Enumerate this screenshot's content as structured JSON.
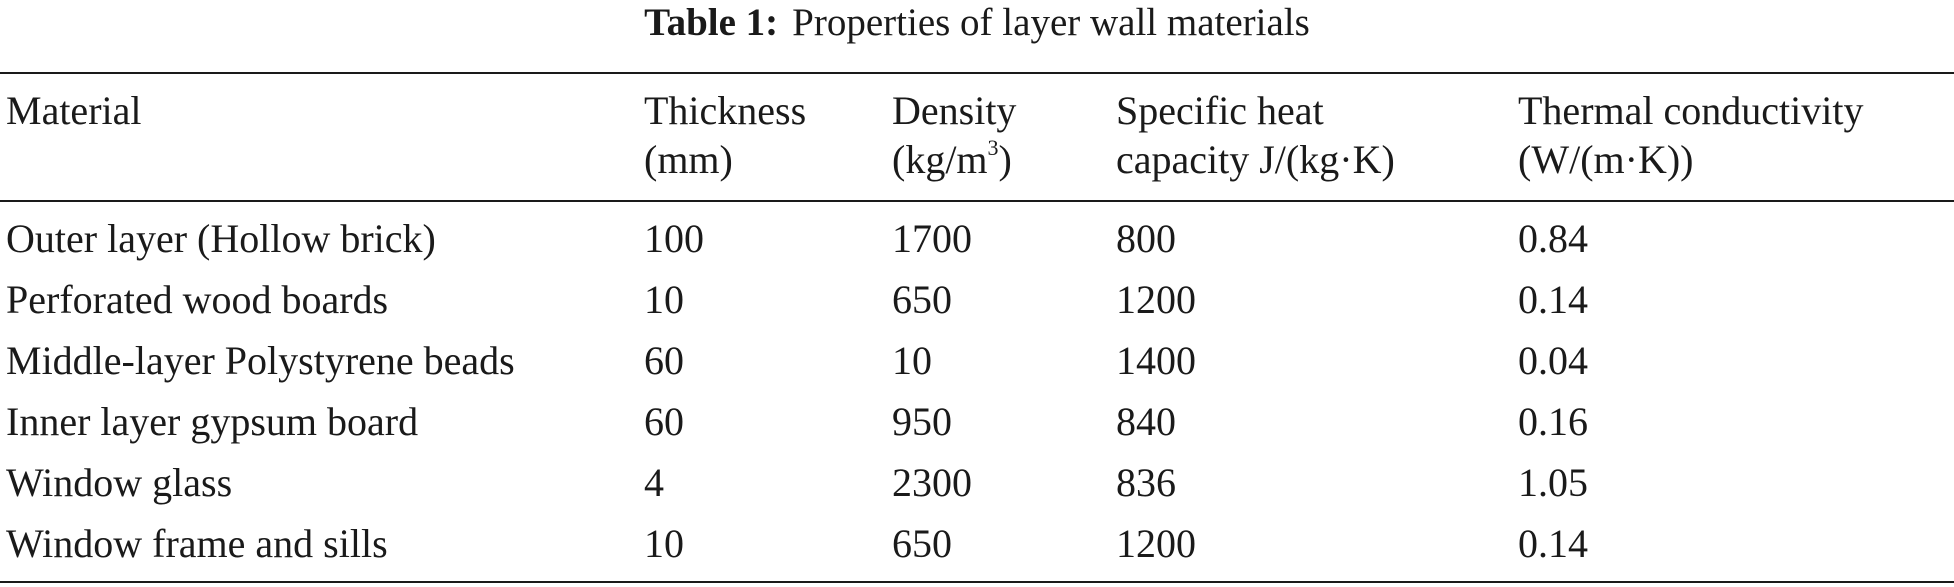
{
  "caption": {
    "label": "Table 1:",
    "text": "Properties of layer wall materials"
  },
  "headers": [
    {
      "line1": "Material",
      "line2": ""
    },
    {
      "line1": "Thickness",
      "line2": "(mm)"
    },
    {
      "line1": "Density",
      "line2_pre": "(kg/m",
      "line2_sup": "3",
      "line2_post": ")"
    },
    {
      "line1": "Specific heat",
      "line2": "capacity J/(kg·K)"
    },
    {
      "line1": "Thermal conductivity",
      "line2": "(W/(m·K))"
    }
  ],
  "rows": [
    [
      "Outer layer (Hollow brick)",
      "100",
      "1700",
      "800",
      "0.84"
    ],
    [
      "Perforated wood boards",
      "10",
      "650",
      "1200",
      "0.14"
    ],
    [
      "Middle-layer Polystyrene beads",
      "60",
      "10",
      "1400",
      "0.04"
    ],
    [
      "Inner layer gypsum board",
      "60",
      "950",
      "840",
      "0.16"
    ],
    [
      "Window glass",
      "4",
      "2300",
      "836",
      "1.05"
    ],
    [
      "Window frame and sills",
      "10",
      "650",
      "1200",
      "0.14"
    ]
  ]
}
